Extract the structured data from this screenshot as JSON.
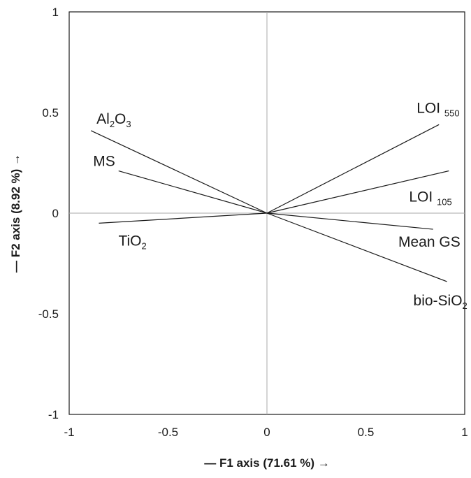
{
  "chart_data": {
    "type": "biplot",
    "xlabel": "— F1 axis (71.61 %) →",
    "ylabel": "— F2 axis (8.92 %) →",
    "xlim": [
      -1,
      1
    ],
    "ylim": [
      -1,
      1
    ],
    "xticks": [
      "-1",
      "-0.5",
      "0",
      "0.5",
      "1"
    ],
    "yticks": [
      "1",
      "0.5",
      "0",
      "-0.5",
      "-1"
    ],
    "grid": false,
    "zero_lines": true,
    "vectors": [
      {
        "label": "Al",
        "sub1": "2",
        "mid": "O",
        "sub2": "3",
        "x": -0.89,
        "y": 0.41
      },
      {
        "label": "MS",
        "x": -0.75,
        "y": 0.21
      },
      {
        "label": "TiO",
        "sub1": "2",
        "x": -0.85,
        "y": -0.05
      },
      {
        "label": "LOI ",
        "sub1": "550",
        "x": 0.87,
        "y": 0.44
      },
      {
        "label": "LOI ",
        "sub1": "105",
        "x": 0.92,
        "y": 0.21
      },
      {
        "label": "Mean GS",
        "x": 0.84,
        "y": -0.08
      },
      {
        "label": "bio-SiO",
        "sub1": "2",
        "x": 0.91,
        "y": -0.34
      }
    ]
  }
}
